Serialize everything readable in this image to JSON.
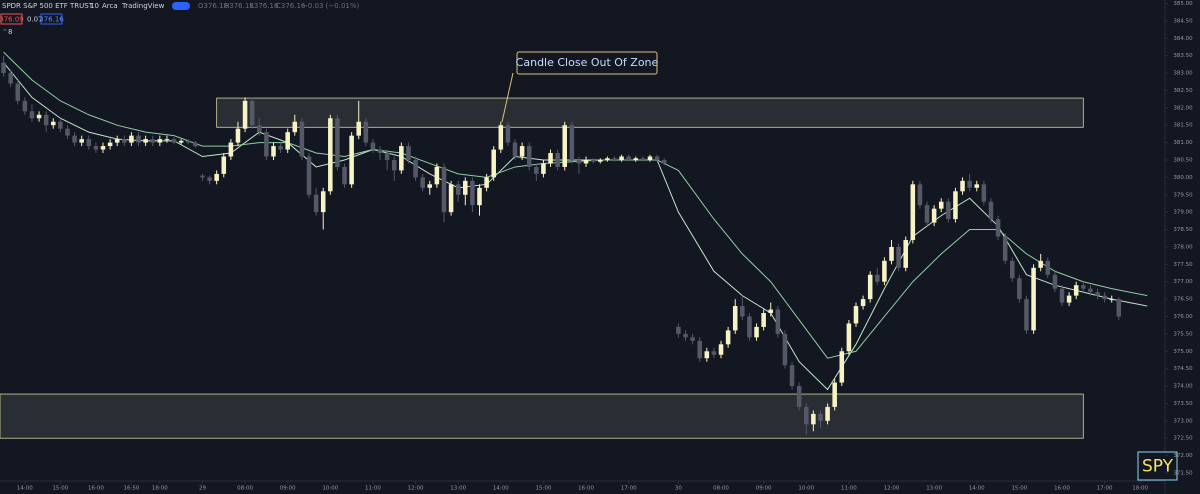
{
  "header": {
    "symbol": "SPDR S&P 500 ETF TRUST",
    "interval": "10",
    "exchange": "Arca",
    "source": "TradingView",
    "ohlc": [
      "O376.18",
      "H376.18",
      "L376.16",
      "C376.16",
      "−0.03 (−0.01%)"
    ],
    "bid": "376.09",
    "spread": "0.07",
    "ask": "376.16",
    "indicators": "8"
  },
  "chart_data": {
    "type": "candlestick",
    "up_color": "#f7f3c4",
    "down_color": "#555866",
    "xlim": [
      -0.5,
      163.5
    ],
    "ylim": [
      371.27,
      385.1
    ],
    "xticks": [
      {
        "value": 3,
        "label": "14:00"
      },
      {
        "value": 8,
        "label": "15:00"
      },
      {
        "value": 13,
        "label": "16:00"
      },
      {
        "value": 18,
        "label": "16:50"
      },
      {
        "value": 22,
        "label": "18:00"
      },
      {
        "value": 28,
        "label": "29"
      },
      {
        "value": 34,
        "label": "08:00"
      },
      {
        "value": 40,
        "label": "09:00"
      },
      {
        "value": 46,
        "label": "10:00"
      },
      {
        "value": 52,
        "label": "11:00"
      },
      {
        "value": 58,
        "label": "12:00"
      },
      {
        "value": 64,
        "label": "13:00"
      },
      {
        "value": 70,
        "label": "14:00"
      },
      {
        "value": 76,
        "label": "15:00"
      },
      {
        "value": 82,
        "label": "16:00"
      },
      {
        "value": 88,
        "label": "17:00"
      },
      {
        "value": 95,
        "label": "30"
      },
      {
        "value": 101,
        "label": "08:00"
      },
      {
        "value": 107,
        "label": "09:00"
      },
      {
        "value": 113,
        "label": "10:00"
      },
      {
        "value": 119,
        "label": "11:00"
      },
      {
        "value": 125,
        "label": "12:00"
      },
      {
        "value": 131,
        "label": "13:00"
      },
      {
        "value": 137,
        "label": "14:00"
      },
      {
        "value": 143,
        "label": "15:00"
      },
      {
        "value": 149,
        "label": "16:00"
      },
      {
        "value": 155,
        "label": "17:00"
      },
      {
        "value": 160,
        "label": "18:00"
      }
    ],
    "yticks": [
      {
        "value": 371.5,
        "label": "371.50"
      },
      {
        "value": 372,
        "label": "372.00"
      },
      {
        "value": 372.5,
        "label": "372.50"
      },
      {
        "value": 373,
        "label": "373.00"
      },
      {
        "value": 373.5,
        "label": "373.50"
      },
      {
        "value": 374,
        "label": "374.00"
      },
      {
        "value": 374.5,
        "label": "374.50"
      },
      {
        "value": 375,
        "label": "375.00"
      },
      {
        "value": 375.5,
        "label": "375.50"
      },
      {
        "value": 376,
        "label": "376.00"
      },
      {
        "value": 376.5,
        "label": "376.50"
      },
      {
        "value": 377,
        "label": "377.00"
      },
      {
        "value": 377.5,
        "label": "377.50"
      },
      {
        "value": 378,
        "label": "378.00"
      },
      {
        "value": 378.5,
        "label": "378.50"
      },
      {
        "value": 379,
        "label": "379.00"
      },
      {
        "value": 379.5,
        "label": "379.50"
      },
      {
        "value": 380,
        "label": "380.00"
      },
      {
        "value": 380.5,
        "label": "380.50"
      },
      {
        "value": 381,
        "label": "381.00"
      },
      {
        "value": 381.5,
        "label": "381.50"
      },
      {
        "value": 382,
        "label": "382.00"
      },
      {
        "value": 382.5,
        "label": "382.50"
      },
      {
        "value": 383,
        "label": "383.00"
      },
      {
        "value": 383.5,
        "label": "383.50"
      },
      {
        "value": 384,
        "label": "384.00"
      },
      {
        "value": 384.5,
        "label": "384.50"
      },
      {
        "value": 385,
        "label": "385.00"
      }
    ],
    "zones": [
      {
        "top": 382.28,
        "bottom": 381.44,
        "start": 30,
        "end": 152
      },
      {
        "top": 373.77,
        "bottom": 372.5,
        "start": -0.5,
        "end": 152
      }
    ],
    "annotation": "Candle Close Out Of Zone",
    "ticker_label": "SPY",
    "series": [
      {
        "color": "#bfe9c9",
        "x": [
          0,
          4,
          8,
          12,
          16,
          20,
          24,
          28,
          32,
          36,
          40,
          44,
          48,
          52,
          56,
          60,
          64,
          68,
          72,
          76,
          80,
          84,
          88,
          92,
          95,
          100,
          104,
          108,
          112,
          116,
          120,
          124,
          128,
          132,
          136,
          140,
          144,
          148,
          152,
          156,
          161
        ],
        "values": [
          383.3,
          382.3,
          381.7,
          381.3,
          381.1,
          381.05,
          381.05,
          380.6,
          380.7,
          381.3,
          381.0,
          380.3,
          380.5,
          380.8,
          380.6,
          380.1,
          379.7,
          379.8,
          380.6,
          380.5,
          380.5,
          380.5,
          380.5,
          380.5,
          379.0,
          377.3,
          376.6,
          376.1,
          374.7,
          373.9,
          375.2,
          376.8,
          378.3,
          378.9,
          379.4,
          378.6,
          377.2,
          376.9,
          376.7,
          376.5,
          376.3
        ]
      },
      {
        "color": "#8fcfa3",
        "x": [
          0,
          4,
          8,
          12,
          16,
          20,
          24,
          28,
          32,
          36,
          40,
          44,
          48,
          52,
          56,
          60,
          64,
          68,
          72,
          76,
          80,
          84,
          88,
          92,
          95,
          100,
          104,
          108,
          112,
          116,
          120,
          124,
          128,
          132,
          136,
          140,
          144,
          148,
          152,
          156,
          161
        ],
        "values": [
          383.6,
          382.8,
          382.2,
          381.8,
          381.5,
          381.3,
          381.2,
          380.9,
          380.9,
          381.0,
          381.0,
          380.7,
          380.6,
          380.8,
          380.7,
          380.4,
          380.1,
          380.0,
          380.3,
          380.4,
          380.45,
          380.5,
          380.5,
          380.5,
          380.2,
          378.8,
          377.8,
          377.0,
          375.9,
          374.8,
          375.0,
          376.0,
          377.0,
          377.8,
          378.5,
          378.5,
          377.8,
          377.3,
          377.0,
          376.8,
          376.6
        ]
      }
    ],
    "candles": [
      [
        383.3,
        383.5,
        382.9,
        383.0
      ],
      [
        383.0,
        383.1,
        382.6,
        382.7
      ],
      [
        382.7,
        382.8,
        382.1,
        382.2
      ],
      [
        382.2,
        382.3,
        381.8,
        381.9
      ],
      [
        381.9,
        382.1,
        381.6,
        381.7
      ],
      [
        381.7,
        381.9,
        381.6,
        381.8
      ],
      [
        381.8,
        381.9,
        381.3,
        381.5
      ],
      [
        381.5,
        381.7,
        381.4,
        381.6
      ],
      [
        381.6,
        381.7,
        381.3,
        381.4
      ],
      [
        381.4,
        381.5,
        381.1,
        381.2
      ],
      [
        381.2,
        381.3,
        380.9,
        381.0
      ],
      [
        381.0,
        381.2,
        380.9,
        381.1
      ],
      [
        381.1,
        381.2,
        380.8,
        380.9
      ],
      [
        380.9,
        381.0,
        380.7,
        380.8
      ],
      [
        380.8,
        381.0,
        380.7,
        380.9
      ],
      [
        380.9,
        381.1,
        380.8,
        381.0
      ],
      [
        381.0,
        381.2,
        380.9,
        381.1
      ],
      [
        381.1,
        381.2,
        380.9,
        381.0
      ],
      [
        381.0,
        381.3,
        380.9,
        381.2
      ],
      [
        381.2,
        381.3,
        380.9,
        381.0
      ],
      [
        381.0,
        381.2,
        380.9,
        381.1
      ],
      [
        381.1,
        381.2,
        380.9,
        381.0
      ],
      [
        381.0,
        381.2,
        380.9,
        381.1
      ],
      [
        381.1,
        381.2,
        381.0,
        381.1
      ],
      [
        381.1,
        381.15,
        380.95,
        381.0
      ],
      [
        381.0,
        381.1,
        380.95,
        381.05
      ],
      [
        381.05,
        381.1,
        380.95,
        381.0
      ],
      [
        381.0,
        381.05,
        380.85,
        380.9
      ],
      [
        380.05,
        380.1,
        379.9,
        380.0
      ],
      [
        380.0,
        380.05,
        379.8,
        379.9
      ],
      [
        379.9,
        380.2,
        379.8,
        380.1
      ],
      [
        380.1,
        380.7,
        380.0,
        380.6
      ],
      [
        380.6,
        381.1,
        380.5,
        381.0
      ],
      [
        381.0,
        381.6,
        380.9,
        381.4
      ],
      [
        381.4,
        382.3,
        381.3,
        382.2
      ],
      [
        382.2,
        382.3,
        381.4,
        381.5
      ],
      [
        381.5,
        381.7,
        381.2,
        381.3
      ],
      [
        381.3,
        381.4,
        380.5,
        380.6
      ],
      [
        380.6,
        381.0,
        380.5,
        380.9
      ],
      [
        380.9,
        381.0,
        380.7,
        380.8
      ],
      [
        380.8,
        381.4,
        380.7,
        381.3
      ],
      [
        381.3,
        381.8,
        381.2,
        381.6
      ],
      [
        381.6,
        381.7,
        380.5,
        380.6
      ],
      [
        380.6,
        380.7,
        379.4,
        379.5
      ],
      [
        379.5,
        379.7,
        378.9,
        379.0
      ],
      [
        379.0,
        379.7,
        378.5,
        379.6
      ],
      [
        379.6,
        381.8,
        379.5,
        381.7
      ],
      [
        381.7,
        381.8,
        380.2,
        380.3
      ],
      [
        380.3,
        380.4,
        379.7,
        379.8
      ],
      [
        379.8,
        381.3,
        379.7,
        381.2
      ],
      [
        381.2,
        382.2,
        381.1,
        381.6
      ],
      [
        381.6,
        381.7,
        380.9,
        381.0
      ],
      [
        381.0,
        381.1,
        380.7,
        380.8
      ],
      [
        380.8,
        380.9,
        380.5,
        380.7
      ],
      [
        380.7,
        380.8,
        380.2,
        380.5
      ],
      [
        380.5,
        380.6,
        379.9,
        380.2
      ],
      [
        380.2,
        381.0,
        380.1,
        380.9
      ],
      [
        380.9,
        381.0,
        380.4,
        380.5
      ],
      [
        380.5,
        380.6,
        379.9,
        380.0
      ],
      [
        380.0,
        380.1,
        379.6,
        379.7
      ],
      [
        379.7,
        379.9,
        379.5,
        379.8
      ],
      [
        379.8,
        380.4,
        379.7,
        380.3
      ],
      [
        380.3,
        380.4,
        378.7,
        379.0
      ],
      [
        379.0,
        379.9,
        378.9,
        379.8
      ],
      [
        379.8,
        379.9,
        379.3,
        379.5
      ],
      [
        379.5,
        380.0,
        379.2,
        379.9
      ],
      [
        379.9,
        380.0,
        379.0,
        379.2
      ],
      [
        379.2,
        379.8,
        378.9,
        379.7
      ],
      [
        379.7,
        380.1,
        379.6,
        380.0
      ],
      [
        380.0,
        380.9,
        379.9,
        380.8
      ],
      [
        380.8,
        381.6,
        380.7,
        381.5
      ],
      [
        381.5,
        381.6,
        380.9,
        381.0
      ],
      [
        381.0,
        381.1,
        380.5,
        380.6
      ],
      [
        380.6,
        381.0,
        380.5,
        380.9
      ],
      [
        380.9,
        381.0,
        380.2,
        380.3
      ],
      [
        380.3,
        380.4,
        379.9,
        380.1
      ],
      [
        380.1,
        380.5,
        380.0,
        380.4
      ],
      [
        380.4,
        380.8,
        380.3,
        380.7
      ],
      [
        380.7,
        380.8,
        380.2,
        380.3
      ],
      [
        380.3,
        381.6,
        380.2,
        381.5
      ],
      [
        381.5,
        381.6,
        380.4,
        380.5
      ],
      [
        380.5,
        380.6,
        380.1,
        380.4
      ],
      [
        380.4,
        380.6,
        380.3,
        380.5
      ],
      [
        380.5,
        380.55,
        380.4,
        380.45
      ],
      [
        380.45,
        380.55,
        380.4,
        380.5
      ],
      [
        380.5,
        380.6,
        380.45,
        380.55
      ],
      [
        380.55,
        380.6,
        380.45,
        380.5
      ],
      [
        380.5,
        380.65,
        380.45,
        380.6
      ],
      [
        380.6,
        380.65,
        380.45,
        380.5
      ],
      [
        380.5,
        380.6,
        380.45,
        380.55
      ],
      [
        380.55,
        380.6,
        380.45,
        380.5
      ],
      [
        380.5,
        380.65,
        380.45,
        380.6
      ],
      [
        380.6,
        380.65,
        380.45,
        380.5
      ],
      [
        380.5,
        380.55,
        380.35,
        380.4
      ],
      null,
      [
        375.7,
        375.8,
        375.4,
        375.5
      ],
      [
        375.5,
        375.6,
        375.3,
        375.4
      ],
      [
        375.4,
        375.5,
        375.2,
        375.3
      ],
      [
        375.3,
        375.4,
        374.7,
        374.8
      ],
      [
        374.8,
        375.1,
        374.7,
        375.0
      ],
      [
        375.0,
        375.1,
        374.8,
        374.9
      ],
      [
        374.9,
        375.3,
        374.8,
        375.2
      ],
      [
        375.2,
        375.7,
        375.1,
        375.6
      ],
      [
        375.6,
        376.5,
        375.5,
        376.3
      ],
      [
        376.3,
        376.6,
        375.9,
        376.0
      ],
      [
        376.0,
        376.1,
        375.3,
        375.4
      ],
      [
        375.4,
        375.8,
        375.3,
        375.7
      ],
      [
        375.7,
        376.2,
        375.6,
        376.1
      ],
      [
        376.1,
        376.4,
        376.0,
        376.2
      ],
      [
        376.2,
        376.3,
        375.4,
        375.5
      ],
      [
        375.5,
        375.6,
        374.5,
        374.6
      ],
      [
        374.6,
        374.7,
        373.9,
        374.0
      ],
      [
        374.0,
        374.1,
        373.3,
        373.4
      ],
      [
        373.4,
        373.5,
        372.6,
        372.9
      ],
      [
        372.9,
        373.3,
        372.7,
        373.2
      ],
      [
        373.2,
        373.3,
        372.8,
        373.0
      ],
      [
        373.0,
        373.5,
        372.9,
        373.4
      ],
      [
        373.4,
        374.2,
        373.3,
        374.1
      ],
      [
        374.1,
        375.1,
        374.0,
        375.0
      ],
      [
        375.0,
        375.9,
        374.9,
        375.8
      ],
      [
        375.8,
        376.4,
        375.7,
        376.3
      ],
      [
        376.3,
        376.6,
        376.2,
        376.5
      ],
      [
        376.5,
        377.3,
        376.4,
        377.2
      ],
      [
        377.2,
        377.4,
        376.9,
        377.0
      ],
      [
        377.0,
        377.7,
        376.9,
        377.6
      ],
      [
        377.6,
        378.2,
        377.5,
        378.0
      ],
      [
        378.0,
        378.1,
        377.3,
        377.4
      ],
      [
        377.4,
        378.3,
        377.3,
        378.2
      ],
      [
        378.2,
        379.9,
        378.1,
        379.8
      ],
      [
        379.8,
        379.9,
        379.1,
        379.2
      ],
      [
        379.2,
        379.3,
        378.6,
        378.7
      ],
      [
        378.7,
        379.2,
        378.6,
        379.1
      ],
      [
        379.1,
        379.4,
        379.0,
        379.3
      ],
      [
        379.3,
        379.4,
        378.7,
        378.8
      ],
      [
        378.8,
        379.7,
        378.7,
        379.6
      ],
      [
        379.6,
        380.0,
        379.5,
        379.9
      ],
      [
        379.9,
        380.1,
        379.6,
        379.7
      ],
      [
        379.7,
        379.9,
        379.6,
        379.8
      ],
      [
        379.8,
        379.9,
        379.2,
        379.3
      ],
      [
        379.3,
        379.4,
        378.7,
        378.8
      ],
      [
        378.8,
        378.9,
        378.2,
        378.3
      ],
      [
        378.3,
        378.4,
        377.5,
        377.6
      ],
      [
        377.6,
        377.7,
        377.0,
        377.1
      ],
      [
        377.1,
        377.2,
        376.4,
        376.5
      ],
      [
        376.5,
        376.6,
        375.5,
        375.6
      ],
      [
        375.6,
        377.5,
        375.5,
        377.4
      ],
      [
        377.4,
        377.8,
        377.3,
        377.6
      ],
      [
        377.6,
        377.7,
        377.1,
        377.2
      ],
      [
        377.2,
        377.3,
        376.7,
        376.8
      ],
      [
        376.8,
        376.9,
        376.3,
        376.4
      ],
      [
        376.4,
        376.7,
        376.3,
        376.6
      ],
      [
        376.6,
        377.0,
        376.5,
        376.9
      ],
      [
        376.9,
        377.0,
        376.7,
        376.8
      ],
      [
        376.8,
        376.9,
        376.6,
        376.7
      ],
      [
        376.7,
        376.8,
        376.5,
        376.6
      ],
      [
        376.6,
        376.7,
        376.4,
        376.5
      ],
      [
        376.5,
        376.6,
        376.4,
        376.5
      ],
      [
        376.5,
        376.55,
        375.9,
        376.0
      ]
    ]
  }
}
